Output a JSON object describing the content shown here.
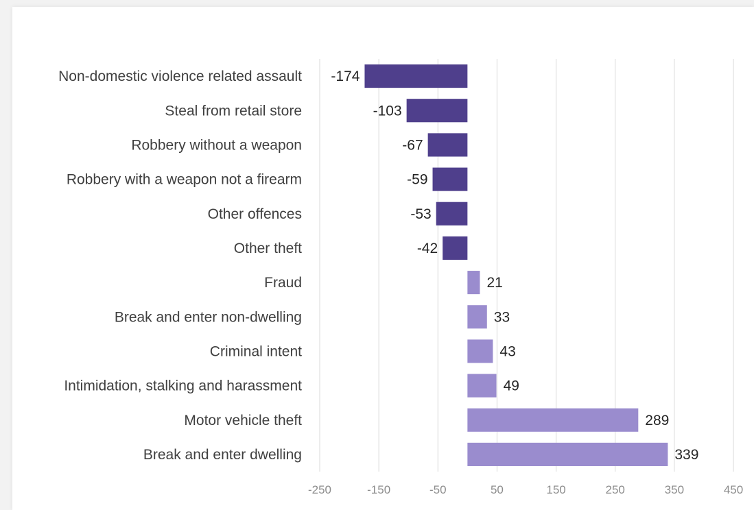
{
  "chart_data": {
    "type": "bar",
    "orientation": "horizontal",
    "categories": [
      "Non-domestic violence related assault",
      "Steal from retail store",
      "Robbery without a weapon",
      "Robbery with a weapon not a firearm",
      "Other offences",
      "Other theft",
      "Fraud",
      "Break and enter non-dwelling",
      "Criminal intent",
      "Intimidation, stalking and harassment",
      "Motor vehicle theft",
      "Break and enter dwelling"
    ],
    "values": [
      -174,
      -103,
      -67,
      -59,
      -53,
      -42,
      21,
      33,
      43,
      49,
      289,
      339
    ],
    "xlim": [
      -250,
      450
    ],
    "xticks": [
      -250,
      -150,
      -50,
      50,
      150,
      250,
      350,
      450
    ],
    "grid": true,
    "legend": "none",
    "colors": {
      "negative": "#4f3f8c",
      "positive": "#9a8cce",
      "grid": "#d9d9d9"
    }
  }
}
